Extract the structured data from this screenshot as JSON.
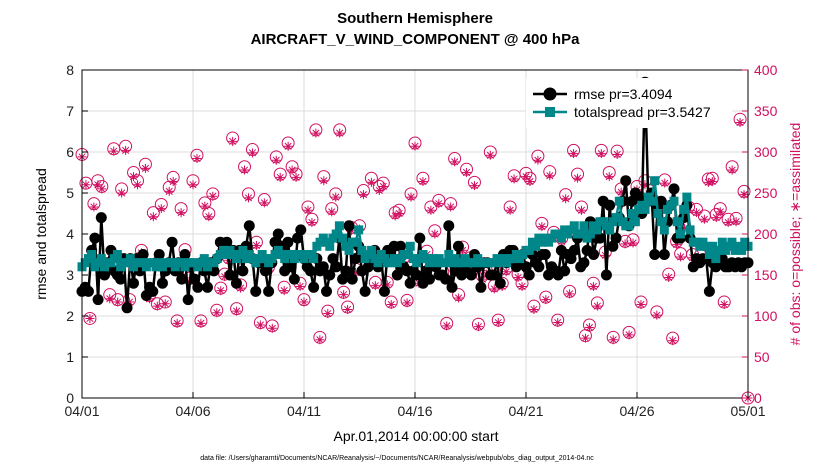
{
  "chart_data": {
    "type": "line",
    "title": "Southern Hemisphere",
    "subtitle": "AIRCRAFT_V_WIND_COMPONENT @ 400 hPa",
    "xlabel": "Apr.01,2014 00:00:00 start",
    "ylabel": "rmse and totalspread",
    "ylabel_right": "# of obs: o=possible; ∗=assimilated",
    "xlim": [
      0,
      30
    ],
    "ylim": [
      0,
      8
    ],
    "ylim_right": [
      0,
      400
    ],
    "xticks": [
      0,
      5,
      10,
      15,
      20,
      25,
      30
    ],
    "xticklabels": [
      "04/01",
      "04/06",
      "04/11",
      "04/16",
      "04/21",
      "04/26",
      "05/01"
    ],
    "yticks": [
      0,
      1,
      2,
      3,
      4,
      5,
      6,
      7,
      8
    ],
    "yticks_right": [
      0,
      50,
      100,
      150,
      200,
      250,
      300,
      350,
      400
    ],
    "grid": true,
    "legend_position": "top-right",
    "footer": "data file: /Users/gharamti/Documents/NCAR/Reanalysis/~/Documents/NCAR/Reanalysis/webpub/obs_diag_output_2014-04.nc",
    "colors": {
      "rmse": "#000000",
      "totalspread": "#00878a",
      "obs": "#d01060"
    },
    "series": [
      {
        "name": "rmse pr=3.4094",
        "axis": "left",
        "values": [
          2.6,
          2.7,
          2.6,
          3.6,
          3.9,
          2.4,
          4.4,
          3.0,
          3.3,
          3.6,
          3.1,
          3.0,
          2.9,
          3.4,
          2.2,
          3.4,
          2.8,
          3.4,
          3.1,
          3.5,
          2.5,
          2.7,
          2.6,
          3.3,
          3.5,
          2.8,
          3.1,
          3.3,
          3.8,
          3.1,
          3.3,
          2.9,
          3.5,
          2.4,
          3.2,
          2.9,
          2.7,
          3.3,
          3.1,
          2.7,
          3.3,
          3.1,
          3.4,
          3.8,
          3.7,
          3.8,
          3.0,
          3.6,
          2.8,
          3.6,
          3.1,
          3.7,
          4.2,
          3.4,
          2.6,
          3.3,
          3.3,
          3.1,
          2.6,
          3.3,
          3.8,
          4.0,
          3.7,
          3.1,
          3.8,
          3.2,
          2.9,
          3.9,
          4.1,
          3.4,
          3.2,
          3.1,
          2.7,
          3.4,
          3.1,
          3.2,
          2.6,
          3.0,
          3.4,
          3.2,
          3.9,
          2.9,
          3.1,
          4.2,
          2.9,
          3.4,
          3.7,
          3.1,
          2.6,
          3.2,
          3.3,
          3.6,
          3.2,
          3.4,
          2.6,
          3.6,
          3.4,
          3.7,
          3.0,
          3.7,
          3.2,
          3.1,
          2.8,
          3.1,
          3.0,
          3.9,
          2.8,
          3.1,
          2.9,
          3.3,
          3.2,
          3.0,
          3.0,
          2.9,
          4.2,
          2.7,
          3.1,
          3.7,
          3.0,
          3.2,
          3.3,
          3.0,
          3.5,
          3.2,
          2.7,
          3.3,
          3.3,
          3.0,
          3.0,
          3.3,
          2.8,
          3.5,
          3.3,
          3.6,
          3.6,
          3.2,
          3.3,
          3.5,
          3.2,
          3.0,
          3.5,
          3.3,
          3.2,
          3.5,
          3.5,
          3.0,
          3.2,
          3.1,
          3.0,
          3.6,
          3.1,
          3.5,
          3.4,
          3.6,
          3.9,
          3.2,
          3.3,
          3.6,
          4.3,
          3.5,
          3.9,
          3.9,
          4.8,
          3.0,
          4.7,
          3.7,
          3.9,
          4.4,
          4.8,
          5.3,
          4.2,
          4.8,
          5.0,
          4.9,
          4.5,
          7.7,
          4.8,
          5.0,
          3.5,
          4.7,
          4.8,
          3.5,
          4.3,
          4.7,
          5.1,
          3.9,
          3.9,
          4.4,
          4.7,
          3.9,
          3.2,
          3.4,
          3.3,
          3.4,
          3.4,
          2.6,
          3.3,
          3.2,
          3.3,
          3.4,
          3.2,
          3.2,
          3.3,
          3.2,
          3.3,
          3.2,
          3.3,
          3.3
        ]
      },
      {
        "name": "totalspread pr=3.5427",
        "axis": "left",
        "values": [
          3.2,
          3.3,
          3.4,
          3.5,
          3.2,
          3.3,
          3.4,
          3.2,
          3.3,
          3.3,
          3.4,
          3.5,
          3.2,
          3.3,
          3.3,
          3.4,
          3.2,
          3.3,
          3.3,
          3.3,
          3.2,
          3.3,
          3.3,
          3.2,
          3.3,
          3.2,
          3.3,
          3.3,
          3.3,
          3.2,
          3.3,
          3.3,
          3.2,
          3.3,
          3.3,
          3.3,
          3.2,
          3.3,
          3.4,
          3.2,
          3.3,
          3.3,
          3.4,
          3.5,
          3.6,
          3.5,
          3.6,
          3.5,
          3.4,
          3.5,
          3.6,
          3.4,
          3.5,
          3.4,
          3.3,
          3.4,
          3.5,
          3.4,
          3.3,
          3.4,
          3.5,
          3.6,
          3.5,
          3.4,
          3.5,
          3.5,
          3.4,
          3.5,
          3.5,
          3.4,
          3.5,
          3.5,
          3.4,
          3.7,
          3.8,
          3.9,
          3.8,
          3.7,
          3.9,
          4.0,
          4.2,
          3.9,
          3.7,
          3.6,
          3.8,
          3.8,
          4.1,
          3.6,
          3.4,
          3.5,
          3.6,
          3.4,
          3.3,
          3.5,
          3.4,
          3.3,
          3.3,
          3.4,
          3.3,
          3.4,
          3.5,
          3.5,
          3.7,
          3.4,
          3.3,
          3.4,
          3.5,
          3.4,
          3.3,
          3.4,
          3.3,
          3.4,
          3.3,
          3.3,
          3.5,
          3.3,
          3.4,
          3.3,
          3.3,
          3.4,
          3.3,
          3.3,
          3.3,
          3.4,
          3.3,
          3.3,
          3.3,
          3.3,
          3.3,
          3.4,
          3.3,
          3.4,
          3.3,
          3.4,
          3.4,
          3.5,
          3.4,
          3.5,
          3.6,
          3.6,
          3.8,
          3.7,
          3.9,
          3.8,
          3.9,
          3.8,
          3.9,
          4.0,
          4.0,
          3.9,
          4.1,
          4.0,
          4.1,
          4.2,
          4.0,
          4.0,
          4.2,
          3.9,
          4.0,
          4.2,
          4.1,
          4.3,
          4.3,
          4.2,
          4.1,
          4.3,
          4.4,
          4.8,
          4.3,
          4.2,
          4.2,
          4.5,
          4.3,
          4.6,
          4.7,
          4.6,
          4.9,
          4.8,
          5.3,
          4.5,
          4.3,
          4.1,
          4.6,
          4.7,
          4.8,
          4.3,
          4.0,
          4.6,
          4.9,
          4.1,
          3.8,
          3.8,
          3.7,
          3.8,
          3.7,
          3.5,
          3.7,
          3.4,
          3.6,
          3.8,
          3.6,
          3.7,
          3.8,
          3.6,
          3.7,
          3.6,
          3.8,
          3.7
        ]
      },
      {
        "name": "obs possible",
        "axis": "right",
        "marker": "circle",
        "values": [
          297,
          262,
          97,
          237,
          265,
          258,
          160,
          126,
          304,
          120,
          255,
          307,
          120,
          275,
          265,
          180,
          285,
          125,
          226,
          115,
          236,
          117,
          257,
          269,
          94,
          231,
          181,
          146,
          265,
          296,
          94,
          238,
          225,
          249,
          107,
          134,
          151,
          171,
          317,
          109,
          138,
          282,
          249,
          303,
          190,
          92,
          242,
          159,
          88,
          294,
          273,
          135,
          311,
          282,
          273,
          140,
          120,
          233,
          218,
          327,
          74,
          270,
          106,
          231,
          249,
          327,
          129,
          111,
          208,
          157,
          210,
          253,
          165,
          268,
          141,
          258,
          262,
          141,
          117,
          226,
          229,
          170,
          119,
          249,
          311,
          144,
          268,
          179,
          233,
          204,
          241,
          154,
          91,
          237,
          292,
          126,
          184,
          279,
          171,
          263,
          90,
          149,
          155,
          300,
          137,
          95,
          140,
          158,
          233,
          271,
          151,
          140,
          274,
          268,
          112,
          295,
          213,
          123,
          276,
          202,
          95,
          195,
          248,
          130,
          302,
          273,
          233,
          76,
          89,
          140,
          116,
          302,
          178,
          275,
          74,
          301,
          255,
          191,
          80,
          193,
          258,
          117,
          265,
          253,
          242,
          105,
          238,
          266,
          151,
          73,
          191,
          176,
          211,
          233,
          175,
          230,
          174,
          222,
          267,
          268,
          224,
          231,
          117,
          218,
          282,
          219,
          340,
          252,
          0
        ]
      },
      {
        "name": "obs assimilated",
        "axis": "right",
        "marker": "asterisk",
        "values": [
          294,
          260,
          97,
          233,
          260,
          255,
          156,
          121,
          301,
          117,
          250,
          302,
          117,
          270,
          260,
          177,
          280,
          121,
          221,
          112,
          231,
          115,
          252,
          264,
          91,
          226,
          176,
          142,
          260,
          292,
          91,
          234,
          221,
          246,
          104,
          131,
          148,
          168,
          313,
          106,
          134,
          278,
          244,
          299,
          186,
          89,
          238,
          155,
          85,
          290,
          269,
          131,
          307,
          278,
          269,
          136,
          117,
          229,
          214,
          323,
          71,
          265,
          103,
          227,
          245,
          323,
          126,
          108,
          204,
          153,
          206,
          248,
          161,
          263,
          137,
          253,
          258,
          138,
          114,
          222,
          225,
          166,
          116,
          245,
          307,
          140,
          264,
          175,
          229,
          200,
          237,
          150,
          88,
          233,
          288,
          122,
          180,
          275,
          168,
          259,
          87,
          145,
          151,
          296,
          133,
          92,
          136,
          154,
          229,
          267,
          147,
          136,
          270,
          264,
          108,
          290,
          209,
          120,
          271,
          198,
          92,
          191,
          243,
          127,
          298,
          268,
          229,
          73,
          86,
          136,
          112,
          298,
          174,
          270,
          71,
          297,
          251,
          188,
          77,
          189,
          254,
          114,
          260,
          249,
          238,
          101,
          234,
          262,
          147,
          70,
          187,
          172,
          207,
          229,
          171,
          226,
          170,
          218,
          263,
          264,
          220,
          227,
          114,
          214,
          278,
          215,
          336,
          248,
          0
        ]
      }
    ]
  }
}
